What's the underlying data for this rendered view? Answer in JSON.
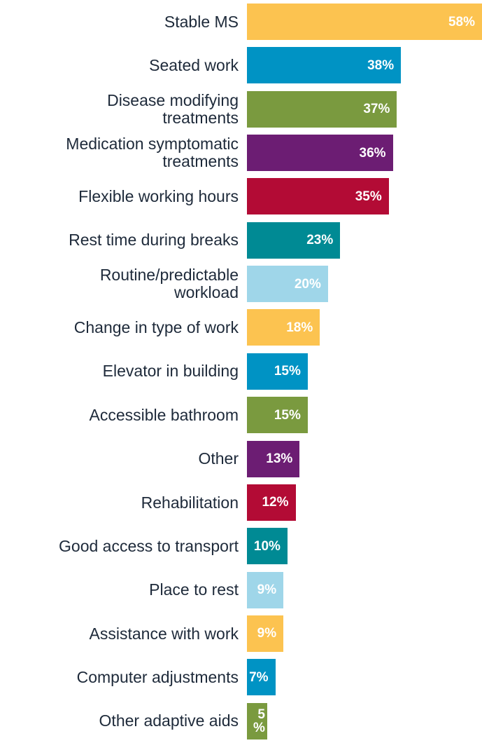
{
  "chart_data": {
    "type": "bar",
    "orientation": "horizontal",
    "categories": [
      "Stable MS",
      "Seated work",
      "Disease modifying\ntreatments",
      "Medication symptomatic\ntreatments",
      "Flexible working hours",
      "Rest time during breaks",
      "Routine/predictable\nworkload",
      "Change in type of work",
      "Elevator in building",
      "Accessible bathroom",
      "Other",
      "Rehabilitation",
      "Good access to transport",
      "Place to rest",
      "Assistance with work",
      "Computer adjustments",
      "Other adaptive aids"
    ],
    "values": [
      58,
      38,
      37,
      36,
      35,
      23,
      20,
      18,
      15,
      15,
      13,
      12,
      10,
      9,
      9,
      7,
      5
    ],
    "value_labels": [
      "58%",
      "38%",
      "37%",
      "36%",
      "35%",
      "23%",
      "20%",
      "18%",
      "15%",
      "15%",
      "13%",
      "12%",
      "10%",
      "9%",
      "9%",
      "7%",
      "5%"
    ],
    "colors": [
      "#fcc350",
      "#0093c4",
      "#7a9a3f",
      "#6c1d73",
      "#b30b35",
      "#008a94",
      "#9fd6e9",
      "#fcc350",
      "#0093c4",
      "#7a9a3f",
      "#6c1d73",
      "#b30b35",
      "#008a94",
      "#9fd6e9",
      "#fcc350",
      "#0093c4",
      "#7a9a3f"
    ]
  }
}
